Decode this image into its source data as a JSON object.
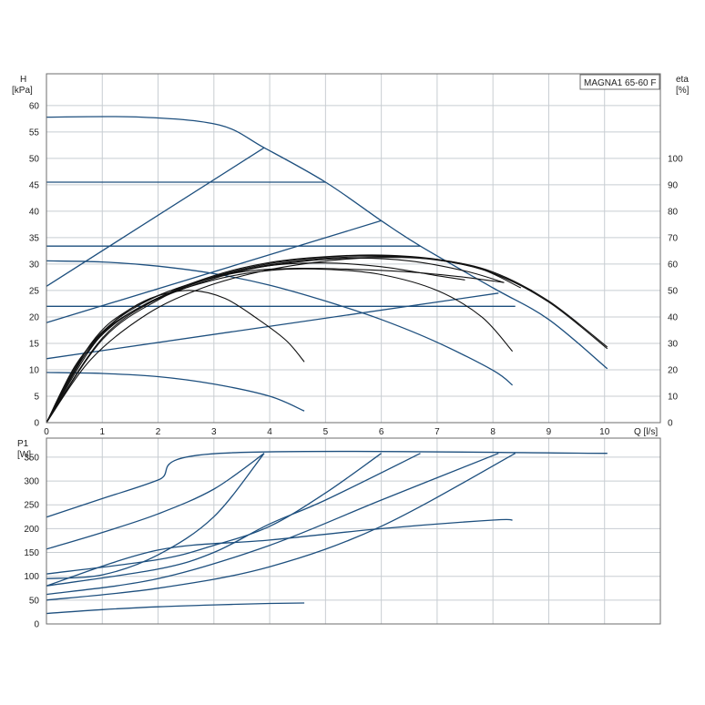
{
  "chart_data": [
    {
      "type": "line",
      "panel": "head",
      "title": "MAGNA1 65-60 F",
      "ylabel_symbol": "H",
      "ylabel_unit": "[kPa]",
      "y2label_symbol": "eta",
      "y2label_unit": "[%]",
      "xlabel": "Q [l/s]",
      "xlim": [
        0,
        11
      ],
      "ylim": [
        0,
        66
      ],
      "y2lim": [
        0,
        132
      ],
      "x_ticks": [
        "0",
        "1",
        "2",
        "3",
        "4",
        "5",
        "6",
        "7",
        "8",
        "9",
        "10"
      ],
      "y_ticks": [
        "0",
        "5",
        "10",
        "15",
        "20",
        "25",
        "30",
        "35",
        "40",
        "45",
        "50",
        "55",
        "60"
      ],
      "y2_ticks": [
        "0",
        "10",
        "20",
        "30",
        "40",
        "50",
        "60",
        "70",
        "80",
        "90",
        "100"
      ],
      "grid": true,
      "series_blue": [
        {
          "points": [
            [
              0,
              57.8
            ],
            [
              1.7,
              57.8
            ],
            [
              3.1,
              56.3
            ],
            [
              3.9,
              52
            ],
            [
              5.0,
              45.5
            ],
            [
              6.0,
              38.2
            ],
            [
              6.7,
              33.4
            ],
            [
              8.0,
              25.5
            ],
            [
              9.0,
              19.5
            ],
            [
              10.05,
              10.2
            ]
          ]
        },
        {
          "points": [
            [
              0,
              45.5
            ],
            [
              5.0,
              45.5
            ]
          ]
        },
        {
          "points": [
            [
              0,
              33.4
            ],
            [
              6.7,
              33.4
            ]
          ]
        },
        {
          "points": [
            [
              0,
              22
            ],
            [
              8.4,
              22
            ]
          ]
        },
        {
          "points": [
            [
              0,
              25.8
            ],
            [
              3.9,
              52
            ]
          ]
        },
        {
          "points": [
            [
              0,
              18.9
            ],
            [
              6.0,
              38.2
            ]
          ]
        },
        {
          "points": [
            [
              0,
              12.1
            ],
            [
              8.1,
              24.5
            ]
          ]
        },
        {
          "points": [
            [
              0,
              30.6
            ],
            [
              1,
              30.4
            ],
            [
              2,
              29.6
            ],
            [
              3,
              28.2
            ],
            [
              4,
              26.0
            ],
            [
              5,
              23.0
            ],
            [
              6,
              19.5
            ],
            [
              7,
              15.2
            ],
            [
              8,
              9.9
            ],
            [
              8.35,
              7.1
            ]
          ]
        },
        {
          "points": [
            [
              0,
              9.5
            ],
            [
              1,
              9.3
            ],
            [
              2,
              8.7
            ],
            [
              3,
              7.3
            ],
            [
              4,
              5.0
            ],
            [
              4.62,
              2.2
            ]
          ]
        }
      ],
      "series_black": [
        {
          "points": [
            [
              0,
              0
            ],
            [
              0.5,
              10.5
            ],
            [
              1,
              17
            ],
            [
              1.5,
              21.5
            ],
            [
              2,
              24
            ],
            [
              2.6,
              25
            ],
            [
              3.2,
              23.5
            ],
            [
              3.8,
              19.5
            ],
            [
              4.3,
              15.5
            ],
            [
              4.62,
              11.5
            ]
          ]
        },
        {
          "points": [
            [
              0,
              0
            ],
            [
              0.6,
              11.5
            ],
            [
              1.2,
              18.5
            ],
            [
              2,
              23.5
            ],
            [
              3,
              27
            ],
            [
              4,
              28.8
            ],
            [
              5,
              29
            ],
            [
              6,
              28
            ],
            [
              7,
              25
            ],
            [
              7.8,
              20
            ],
            [
              8.35,
              13.5
            ]
          ]
        },
        {
          "points": [
            [
              0,
              0
            ],
            [
              0.6,
              12
            ],
            [
              1.2,
              19
            ],
            [
              2,
              24
            ],
            [
              3,
              27.5
            ],
            [
              4,
              29.7
            ],
            [
              5,
              30.2
            ],
            [
              6,
              29.5
            ],
            [
              7,
              27.8
            ],
            [
              7.5,
              27
            ]
          ]
        },
        {
          "points": [
            [
              0,
              0
            ],
            [
              0.8,
              15
            ],
            [
              1.5,
              21.5
            ],
            [
              2.5,
              26
            ],
            [
              3.5,
              28.5
            ],
            [
              4.5,
              29.2
            ],
            [
              5.5,
              29.0
            ],
            [
              6.5,
              28.5
            ],
            [
              7.5,
              27.5
            ],
            [
              8.2,
              26.5
            ]
          ]
        },
        {
          "points": [
            [
              0,
              0
            ],
            [
              0.8,
              14.5
            ],
            [
              1.5,
              20.8
            ],
            [
              2.5,
              25.5
            ],
            [
              3.5,
              28.7
            ],
            [
              4.5,
              30.4
            ],
            [
              5.5,
              31.1
            ],
            [
              6.5,
              30.6
            ],
            [
              7.5,
              28.7
            ],
            [
              8.2,
              26.5
            ]
          ]
        },
        {
          "points": [
            [
              0,
              0
            ],
            [
              0.9,
              15.5
            ],
            [
              1.7,
              22
            ],
            [
              2.7,
              26.5
            ],
            [
              3.7,
              29.3
            ],
            [
              4.7,
              30.8
            ],
            [
              5.7,
              31.4
            ],
            [
              6.7,
              31.2
            ],
            [
              7.7,
              29.4
            ],
            [
              8.5,
              25.5
            ]
          ]
        },
        {
          "points": [
            [
              0,
              0
            ],
            [
              1,
              16
            ],
            [
              2,
              23.5
            ],
            [
              3,
              27.8
            ],
            [
              4,
              30.3
            ],
            [
              5,
              31.4
            ],
            [
              6,
              31.7
            ],
            [
              7,
              30.9
            ],
            [
              8,
              28.5
            ],
            [
              9,
              23
            ],
            [
              10.05,
              14.3
            ]
          ]
        },
        {
          "points": [
            [
              0,
              0
            ],
            [
              1,
              15.7
            ],
            [
              2,
              23.2
            ],
            [
              3,
              27.6
            ],
            [
              4,
              30.1
            ],
            [
              5,
              31.3
            ],
            [
              6,
              31.6
            ],
            [
              7,
              30.8
            ],
            [
              8,
              28.3
            ],
            [
              9,
              22.8
            ],
            [
              10.05,
              14.0
            ]
          ]
        },
        {
          "points": [
            [
              0,
              0
            ],
            [
              0.8,
              12
            ],
            [
              1.8,
              20.5
            ],
            [
              2.8,
              25.5
            ],
            [
              3.8,
              28.5
            ],
            [
              4.8,
              30.3
            ],
            [
              5.8,
              31.2
            ],
            [
              6.8,
              31.0
            ],
            [
              7.8,
              29
            ],
            [
              8.7,
              25
            ]
          ]
        }
      ]
    },
    {
      "type": "line",
      "panel": "power",
      "ylabel_symbol": "P1",
      "ylabel_unit": "[W]",
      "xlim": [
        0,
        11
      ],
      "ylim": [
        0,
        390
      ],
      "y_ticks": [
        "0",
        "50",
        "100",
        "150",
        "200",
        "250",
        "300",
        "350"
      ],
      "grid": true,
      "series_blue": [
        {
          "points": [
            [
              0,
              224
            ],
            [
              1,
              263
            ],
            [
              2,
              302
            ],
            [
              3.1,
              358
            ],
            [
              10.05,
              358
            ]
          ]
        },
        {
          "points": [
            [
              0,
              157
            ],
            [
              1,
              192
            ],
            [
              2,
              231
            ],
            [
              3,
              283
            ],
            [
              3.9,
              358
            ]
          ]
        },
        {
          "points": [
            [
              0,
              105
            ],
            [
              2,
              135
            ],
            [
              3,
              165
            ],
            [
              4,
              205
            ],
            [
              5,
              275
            ],
            [
              6,
              358
            ]
          ]
        },
        {
          "points": [
            [
              0,
              95
            ],
            [
              1,
              103
            ],
            [
              2,
              145
            ],
            [
              3,
              225
            ],
            [
              3.9,
              358
            ]
          ]
        },
        {
          "points": [
            [
              0,
              80
            ],
            [
              2,
              115
            ],
            [
              3,
              150
            ],
            [
              4,
              210
            ],
            [
              5,
              260
            ],
            [
              6.7,
              358
            ]
          ]
        },
        {
          "points": [
            [
              0,
              62
            ],
            [
              2,
              95
            ],
            [
              4,
              165
            ],
            [
              6,
              260
            ],
            [
              8.1,
              358
            ]
          ]
        },
        {
          "points": [
            [
              0,
              50
            ],
            [
              2,
              75
            ],
            [
              4,
              120
            ],
            [
              6,
              205
            ],
            [
              8.4,
              358
            ]
          ]
        },
        {
          "points": [
            [
              0,
              80
            ],
            [
              2,
              155
            ],
            [
              4,
              176
            ],
            [
              6,
              200
            ],
            [
              8,
              218
            ],
            [
              8.35,
              218
            ]
          ]
        },
        {
          "points": [
            [
              0,
              22
            ],
            [
              1,
              30
            ],
            [
              2,
              36
            ],
            [
              3,
              40
            ],
            [
              4,
              43
            ],
            [
              4.62,
              44
            ]
          ]
        }
      ]
    }
  ]
}
